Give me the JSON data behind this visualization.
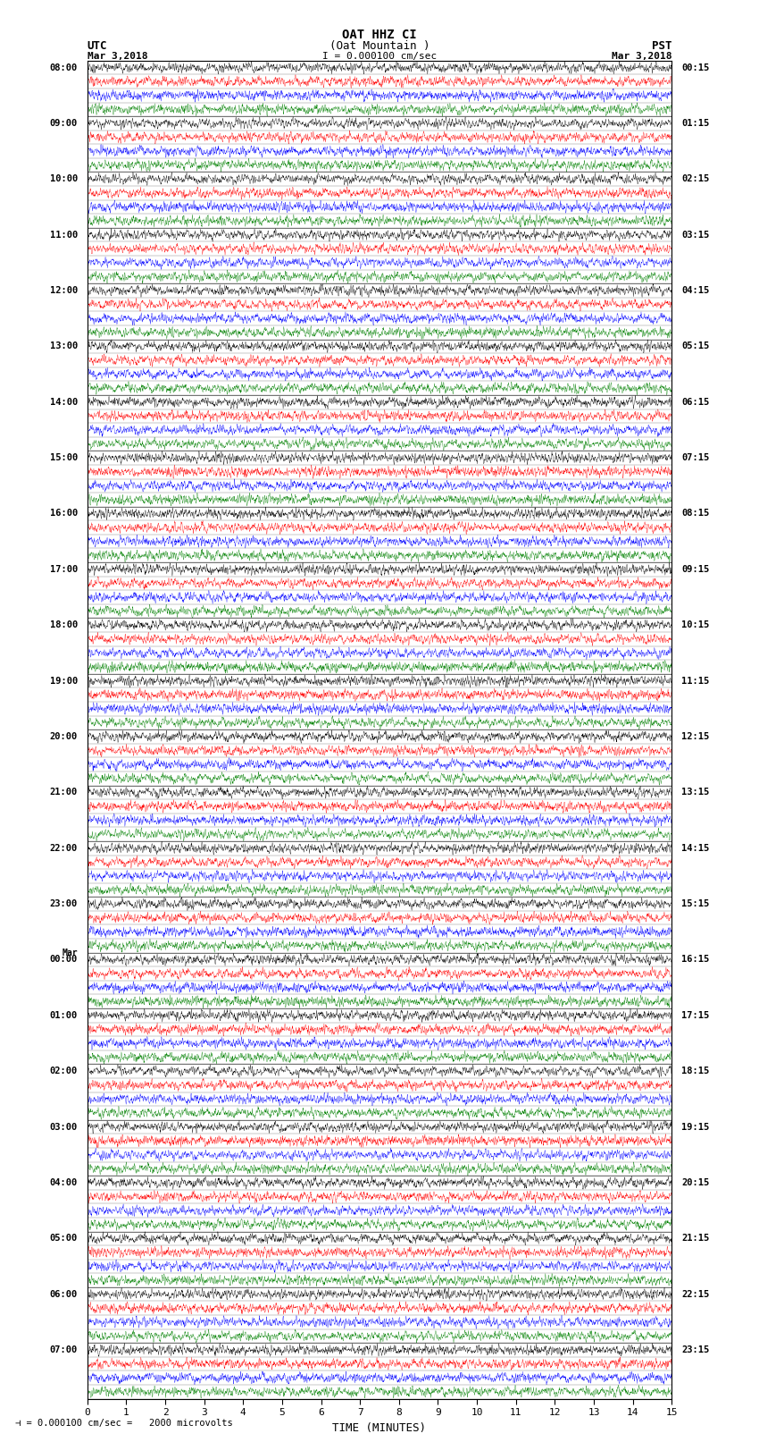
{
  "title_line1": "OAT HHZ CI",
  "title_line2": "(Oat Mountain )",
  "scale_label": "I = 0.000100 cm/sec",
  "utc_label": "UTC",
  "pst_label": "PST",
  "date_left": "Mar 3,2018",
  "date_right": "Mar 3,2018",
  "bottom_label": "TIME (MINUTES)",
  "scale_note": "= 0.000100 cm/sec =   2000 microvolts",
  "xlabel_ticks": [
    0,
    1,
    2,
    3,
    4,
    5,
    6,
    7,
    8,
    9,
    10,
    11,
    12,
    13,
    14,
    15
  ],
  "utc_times": [
    "08:00",
    "09:00",
    "10:00",
    "11:00",
    "12:00",
    "13:00",
    "14:00",
    "15:00",
    "16:00",
    "17:00",
    "18:00",
    "19:00",
    "20:00",
    "21:00",
    "22:00",
    "23:00",
    "Mar\n00:00",
    "01:00",
    "02:00",
    "03:00",
    "04:00",
    "05:00",
    "06:00",
    "07:00"
  ],
  "pst_times": [
    "00:15",
    "01:15",
    "02:15",
    "03:15",
    "04:15",
    "05:15",
    "06:15",
    "07:15",
    "08:15",
    "09:15",
    "10:15",
    "11:15",
    "12:15",
    "13:15",
    "14:15",
    "15:15",
    "16:15",
    "17:15",
    "18:15",
    "19:15",
    "20:15",
    "21:15",
    "22:15",
    "23:15"
  ],
  "n_hour_blocks": 24,
  "sub_rows": 4,
  "sub_colors": [
    "black",
    "red",
    "blue",
    "green"
  ],
  "bg_color": "#ffffff",
  "seed": 42
}
